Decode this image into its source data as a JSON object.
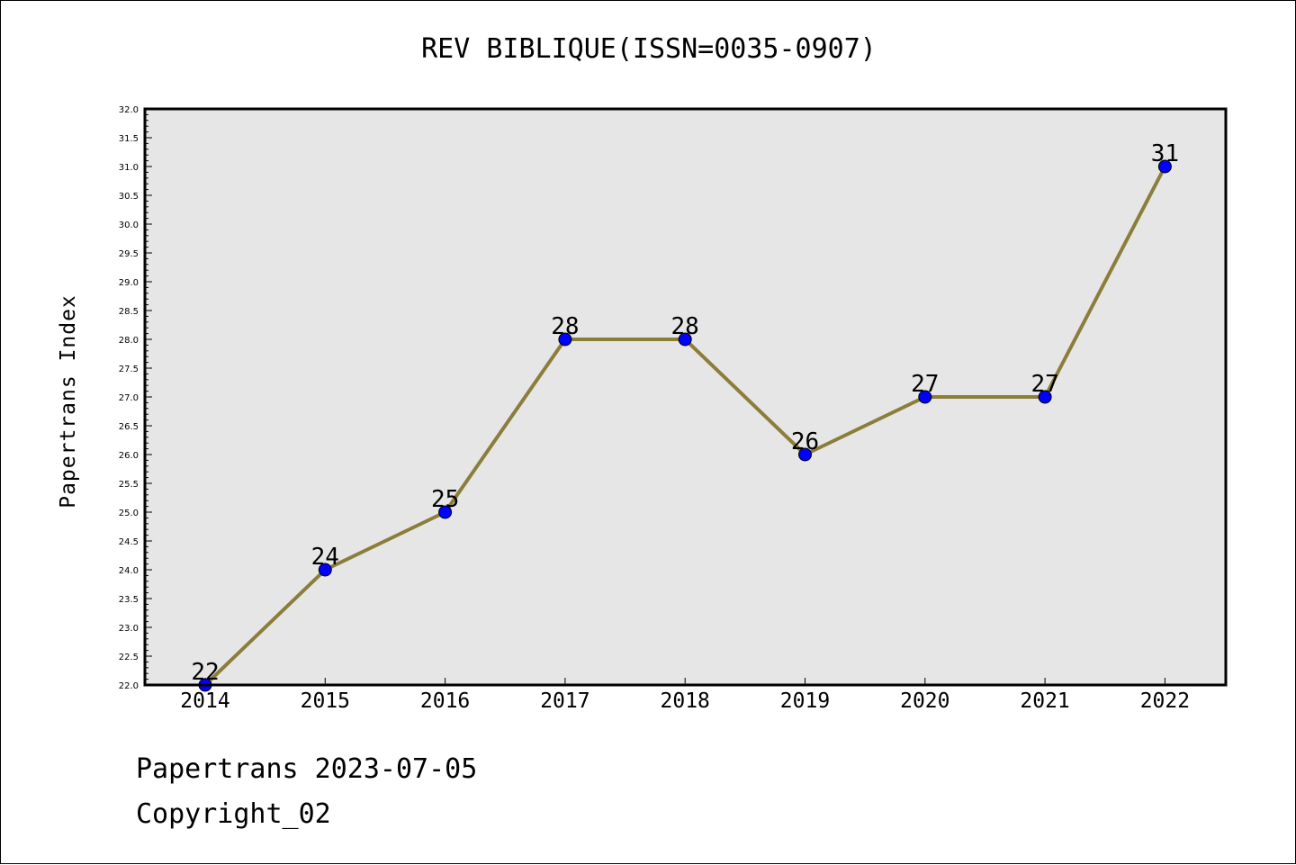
{
  "chart_data": {
    "type": "line",
    "title": "REV BIBLIQUE(ISSN=0035-0907)",
    "ylabel": "Papertrans Index",
    "xlabel": "",
    "categories": [
      "2014",
      "2015",
      "2016",
      "2017",
      "2018",
      "2019",
      "2020",
      "2021",
      "2022"
    ],
    "values": [
      22,
      24,
      25,
      28,
      28,
      26,
      27,
      27,
      31
    ],
    "data_labels": [
      "22",
      "24",
      "25",
      "28",
      "28",
      "26",
      "27",
      "27",
      "31"
    ],
    "ylim": [
      22.0,
      32.0
    ],
    "yticks": [
      "22.0",
      "22.5",
      "23.0",
      "23.5",
      "24.0",
      "24.5",
      "25.0",
      "25.5",
      "26.0",
      "26.5",
      "27.0",
      "27.5",
      "28.0",
      "28.5",
      "29.0",
      "29.5",
      "30.0",
      "30.5",
      "31.0",
      "31.5",
      "32.0"
    ],
    "grid": false,
    "colors": {
      "line": "#8b7d3a",
      "marker": "#0000ff",
      "plot_background": "#e6e6e6"
    }
  },
  "footer": {
    "date_line": "Papertrans 2023-07-05",
    "copyright": "Copyright_02"
  }
}
